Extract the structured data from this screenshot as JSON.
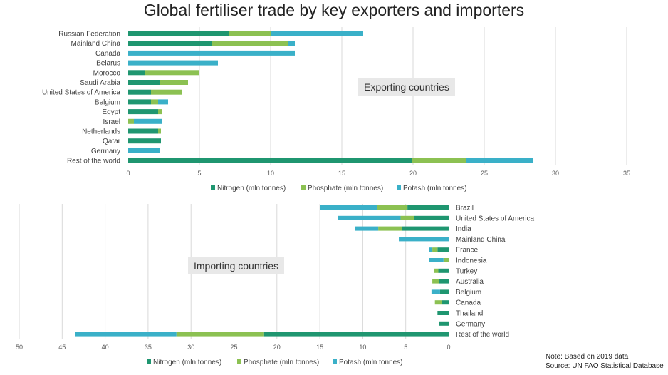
{
  "title": "Global fertiliser trade by key exporters and importers",
  "colors": {
    "nitrogen": "#1f9670",
    "phosphate": "#8cc152",
    "potash": "#3ab0c8",
    "grid": "#d9d9d9"
  },
  "note": "Note: Based on 2019  data",
  "source": "Source: UN FAO Statistical Database",
  "chart_data": [
    {
      "type": "bar",
      "orientation": "horizontal-stacked",
      "annotation": "Exporting countries",
      "categories": [
        "Russian Federation",
        "Mainland China",
        "Canada",
        "Belarus",
        "Morocco",
        "Saudi Arabia",
        "United States of America",
        "Belgium",
        "Egypt",
        "Israel",
        "Netherlands",
        "Qatar",
        "Germany",
        "Rest of the world"
      ],
      "series": [
        {
          "name": "Nitrogen (mln tonnes)",
          "color": "#1f9670",
          "values": [
            7.1,
            5.9,
            0,
            0,
            1.2,
            2.2,
            1.6,
            1.6,
            2.1,
            0,
            2.1,
            2.3,
            0,
            19.9
          ]
        },
        {
          "name": "Phosphate (mln tonnes)",
          "color": "#8cc152",
          "values": [
            2.9,
            5.3,
            0,
            0,
            3.8,
            2.0,
            2.2,
            0.5,
            0.3,
            0.4,
            0.2,
            0,
            0,
            3.8
          ]
        },
        {
          "name": "Potash (mln tonnes)",
          "color": "#3ab0c8",
          "values": [
            6.5,
            0.5,
            11.7,
            6.3,
            0,
            0,
            0,
            0.7,
            0,
            2.0,
            0,
            0,
            2.2,
            4.7
          ]
        }
      ],
      "xlim": [
        0,
        35
      ],
      "xticks": [
        "0",
        "5",
        "10",
        "15",
        "20",
        "25",
        "30",
        "35"
      ],
      "legend": "bottom"
    },
    {
      "type": "bar",
      "orientation": "horizontal-stacked-reversed",
      "annotation": "Importing countries",
      "categories": [
        "Brazil",
        "United States of America",
        "India",
        "Mainland China",
        "France",
        "Indonesia",
        "Turkey",
        "Australia",
        "Belgium",
        "Canada",
        "Thailand",
        "Germany",
        "Rest of the world"
      ],
      "series": [
        {
          "name": "Nitrogen (mln tonnes)",
          "color": "#1f9670",
          "values": [
            4.8,
            4.0,
            5.4,
            0,
            1.3,
            0,
            1.2,
            1.1,
            1.0,
            0.8,
            1.3,
            1.1,
            21.5
          ]
        },
        {
          "name": "Phosphate (mln tonnes)",
          "color": "#8cc152",
          "values": [
            3.5,
            1.6,
            2.8,
            0,
            0.6,
            0.6,
            0.5,
            0.8,
            0,
            0.8,
            0,
            0,
            10.2
          ]
        },
        {
          "name": "Potash (mln tonnes)",
          "color": "#3ab0c8",
          "values": [
            6.7,
            7.3,
            2.7,
            5.8,
            0.4,
            1.7,
            0,
            0,
            1.0,
            0,
            0,
            0,
            11.8
          ]
        }
      ],
      "xlim": [
        0,
        50
      ],
      "xticks": [
        "50",
        "45",
        "40",
        "35",
        "30",
        "25",
        "20",
        "15",
        "10",
        "5",
        "0"
      ],
      "legend": "bottom"
    }
  ]
}
